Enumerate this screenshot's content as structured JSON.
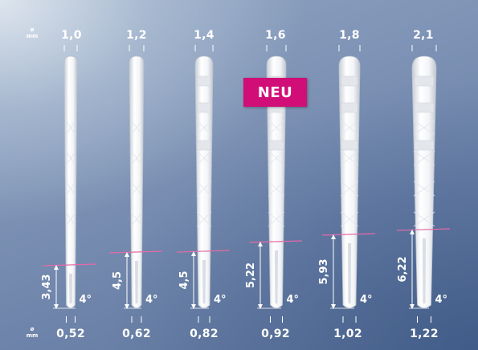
{
  "unit_label": "mm",
  "unit_symbol": "ø",
  "badge": "NEU",
  "angle_label": "4°",
  "instruments": [
    {
      "top_diameter": "1,0",
      "tip_diameter": "0,52",
      "taper_length": "3,43",
      "has_tabs": false
    },
    {
      "top_diameter": "1,2",
      "tip_diameter": "0,62",
      "taper_length": "4,5",
      "has_tabs": false
    },
    {
      "top_diameter": "1,4",
      "tip_diameter": "0,82",
      "taper_length": "4,5",
      "has_tabs": true
    },
    {
      "top_diameter": "1,6",
      "tip_diameter": "0,92",
      "taper_length": "5,22",
      "has_tabs": true
    },
    {
      "top_diameter": "1,8",
      "tip_diameter": "1,02",
      "taper_length": "5,93",
      "has_tabs": true
    },
    {
      "top_diameter": "2,1",
      "tip_diameter": "1,22",
      "taper_length": "6,22",
      "has_tabs": true
    }
  ],
  "colors": {
    "badge": "#d10d77",
    "marker_line": "#e56aa6"
  }
}
